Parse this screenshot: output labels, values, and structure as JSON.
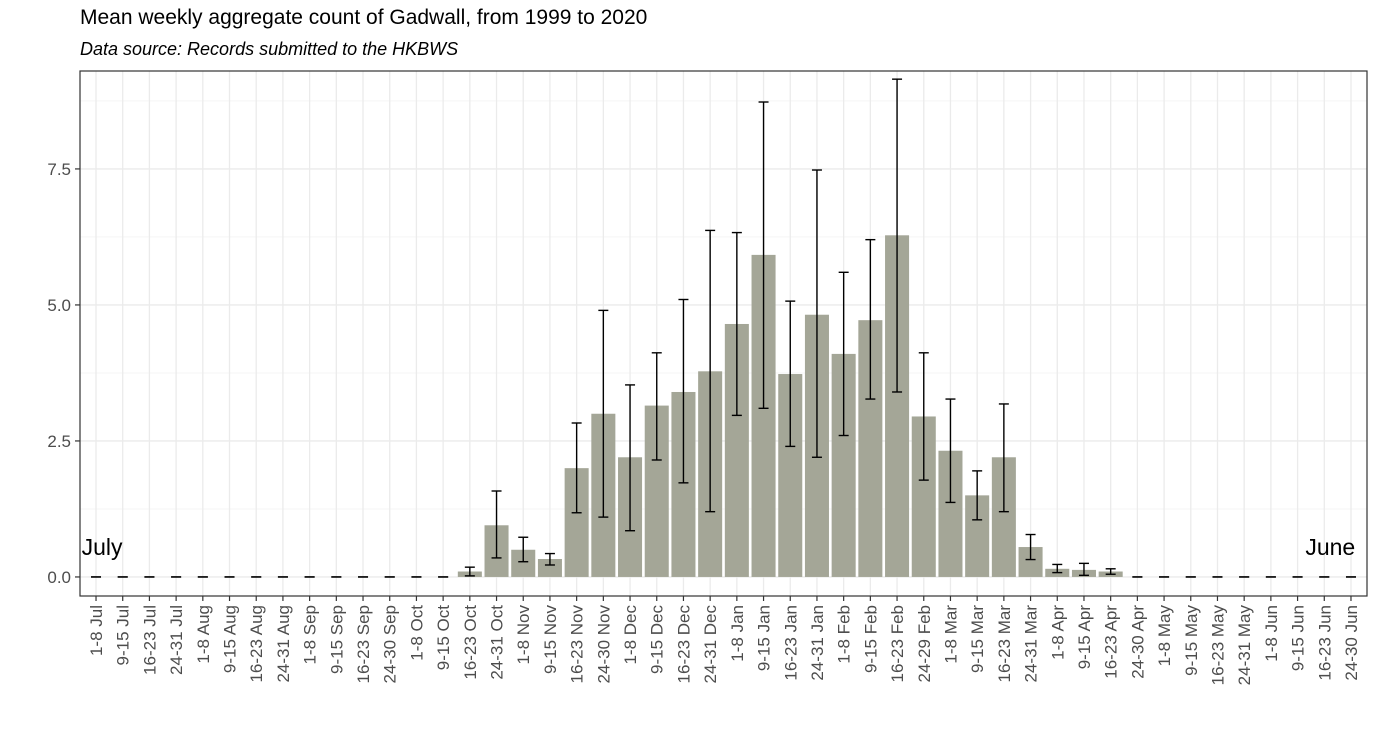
{
  "title": "Mean weekly aggregate count of Gadwall, from 1999 to 2020",
  "subtitle": "Data source: Records submitted to the HKBWS",
  "colors": {
    "bar": "#a4a697",
    "errorbar": "#000000",
    "grid_major": "#ebebeb",
    "grid_minor": "#f5f5f5",
    "panel_border": "#333333",
    "tick_text": "#4d4d4d"
  },
  "chart_data": {
    "type": "bar",
    "title": "Mean weekly aggregate count of Gadwall, from 1999 to 2020",
    "subtitle": "Data source: Records submitted to the HKBWS",
    "xlabel": "",
    "ylabel": "",
    "ylim": [
      -0.35,
      9.3
    ],
    "yticks": [
      0.0,
      2.5,
      5.0,
      7.5
    ],
    "ytick_labels": [
      "0.0",
      "2.5",
      "5.0",
      "7.5"
    ],
    "grid": true,
    "categories": [
      "1-8 Jul",
      "9-15 Jul",
      "16-23 Jul",
      "24-31 Jul",
      "1-8 Aug",
      "9-15 Aug",
      "16-23 Aug",
      "24-31 Aug",
      "1-8 Sep",
      "9-15 Sep",
      "16-23 Sep",
      "24-30 Sep",
      "1-8 Oct",
      "9-15 Oct",
      "16-23 Oct",
      "24-31 Oct",
      "1-8 Nov",
      "9-15 Nov",
      "16-23 Nov",
      "24-30 Nov",
      "1-8 Dec",
      "9-15 Dec",
      "16-23 Dec",
      "24-31 Dec",
      "1-8 Jan",
      "9-15 Jan",
      "16-23 Jan",
      "24-31 Jan",
      "1-8 Feb",
      "9-15 Feb",
      "16-23 Feb",
      "24-29 Feb",
      "1-8 Mar",
      "9-15 Mar",
      "16-23 Mar",
      "24-31 Mar",
      "1-8 Apr",
      "9-15 Apr",
      "16-23 Apr",
      "24-30 Apr",
      "1-8 May",
      "9-15 May",
      "16-23 May",
      "24-31 May",
      "1-8 Jun",
      "9-15 Jun",
      "16-23 Jun",
      "24-30 Jun"
    ],
    "values": [
      0,
      0,
      0,
      0,
      0,
      0,
      0,
      0,
      0,
      0,
      0,
      0,
      0,
      0,
      0.1,
      0.95,
      0.5,
      0.33,
      2.0,
      3.0,
      2.2,
      3.15,
      3.4,
      3.78,
      4.65,
      5.92,
      3.73,
      4.82,
      4.1,
      4.72,
      6.28,
      2.95,
      2.32,
      1.5,
      2.2,
      0.55,
      0.15,
      0.13,
      0.1,
      0,
      0,
      0,
      0,
      0,
      0,
      0,
      0,
      0
    ],
    "error_low": [
      0,
      0,
      0,
      0,
      0,
      0,
      0,
      0,
      0,
      0,
      0,
      0,
      0,
      0,
      0.02,
      0.35,
      0.28,
      0.22,
      1.18,
      1.1,
      0.85,
      2.15,
      1.73,
      1.2,
      2.97,
      3.1,
      2.4,
      2.2,
      2.6,
      3.27,
      3.4,
      1.78,
      1.37,
      1.05,
      1.2,
      0.32,
      0.08,
      0.03,
      0.05,
      0,
      0,
      0,
      0,
      0,
      0,
      0,
      0,
      0
    ],
    "error_high": [
      0,
      0,
      0,
      0,
      0,
      0,
      0,
      0,
      0,
      0,
      0,
      0,
      0,
      0,
      0.18,
      1.58,
      0.73,
      0.43,
      2.83,
      4.9,
      3.53,
      4.12,
      5.1,
      6.37,
      6.33,
      8.73,
      5.07,
      7.48,
      5.6,
      6.2,
      9.15,
      4.12,
      3.27,
      1.95,
      3.18,
      0.78,
      0.23,
      0.25,
      0.15,
      0,
      0,
      0,
      0,
      0,
      0,
      0,
      0,
      0
    ],
    "annotations": [
      {
        "text": "July",
        "category": "1-8 Jul",
        "y": 0.55
      },
      {
        "text": "June",
        "category": "16-23 Jun",
        "y": 0.55
      }
    ]
  }
}
